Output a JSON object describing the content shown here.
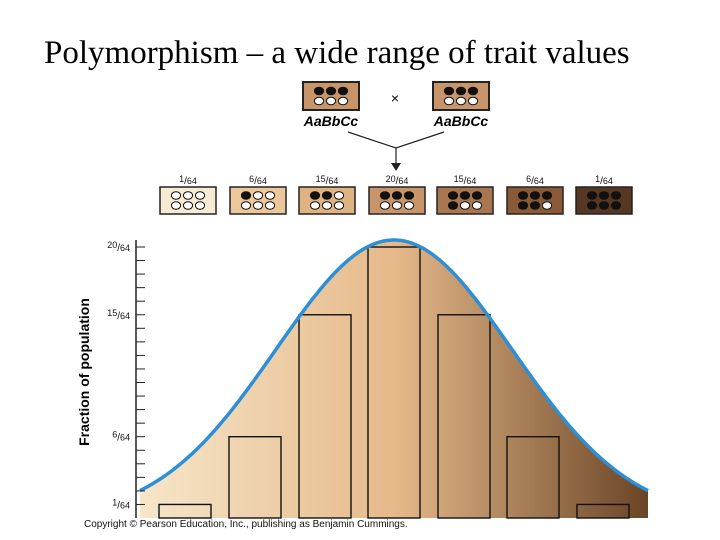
{
  "slide": {
    "title": "Polymorphism – a wide range of trait values"
  },
  "cross": {
    "parent_left": {
      "genotype": "AaBbCc",
      "dots": [
        1,
        1,
        1,
        0,
        0,
        0
      ],
      "color": "#c8956a"
    },
    "symbol": "×",
    "parent_right": {
      "genotype": "AaBbCc",
      "dots": [
        1,
        1,
        1,
        0,
        0,
        0
      ],
      "color": "#c8956a"
    }
  },
  "offspring_classes": [
    {
      "label": "1/64",
      "num": "1",
      "den": "64",
      "dots": [
        0,
        0,
        0,
        0,
        0,
        0
      ],
      "color": "#f7ecd3"
    },
    {
      "label": "6/64",
      "num": "6",
      "den": "64",
      "dots": [
        1,
        0,
        0,
        0,
        0,
        0
      ],
      "color": "#ecc79c"
    },
    {
      "label": "15/64",
      "num": "15",
      "den": "64",
      "dots": [
        1,
        1,
        0,
        0,
        0,
        0
      ],
      "color": "#dfb282"
    },
    {
      "label": "20/64",
      "num": "20",
      "den": "64",
      "dots": [
        1,
        1,
        1,
        0,
        0,
        0
      ],
      "color": "#c8956a"
    },
    {
      "label": "15/64",
      "num": "15",
      "den": "64",
      "dots": [
        1,
        1,
        1,
        1,
        0,
        0
      ],
      "color": "#a87650"
    },
    {
      "label": "6/64",
      "num": "6",
      "den": "64",
      "dots": [
        1,
        1,
        1,
        1,
        1,
        0
      ],
      "color": "#8a5a36"
    },
    {
      "label": "1/64",
      "num": "1",
      "den": "64",
      "dots": [
        1,
        1,
        1,
        1,
        1,
        1
      ],
      "color": "#573722"
    }
  ],
  "chart_data": {
    "type": "bar",
    "ylabel": "Fraction of population",
    "xlabel": "",
    "categories": [
      "1/64",
      "6/64",
      "15/64",
      "20/64",
      "15/64",
      "6/64",
      "1/64"
    ],
    "values": [
      1,
      6,
      15,
      20,
      15,
      6,
      1
    ],
    "ylim": [
      0,
      20
    ],
    "y_ticks": [
      {
        "value": 20,
        "num": "20",
        "den": "64"
      },
      {
        "value": 15,
        "num": "15",
        "den": "64"
      },
      {
        "value": 6,
        "num": "6",
        "den": "64"
      },
      {
        "value": 1,
        "num": "1",
        "den": "64"
      }
    ],
    "curve": {
      "type": "normal-distribution",
      "color": "#2d8fd6"
    },
    "background_gradient": [
      "#f6e6c9",
      "#e6b98a",
      "#6a4526"
    ],
    "grid": false
  },
  "footer": {
    "copyright": "Copyright © Pearson Education, Inc., publishing as Benjamin Cummings."
  }
}
